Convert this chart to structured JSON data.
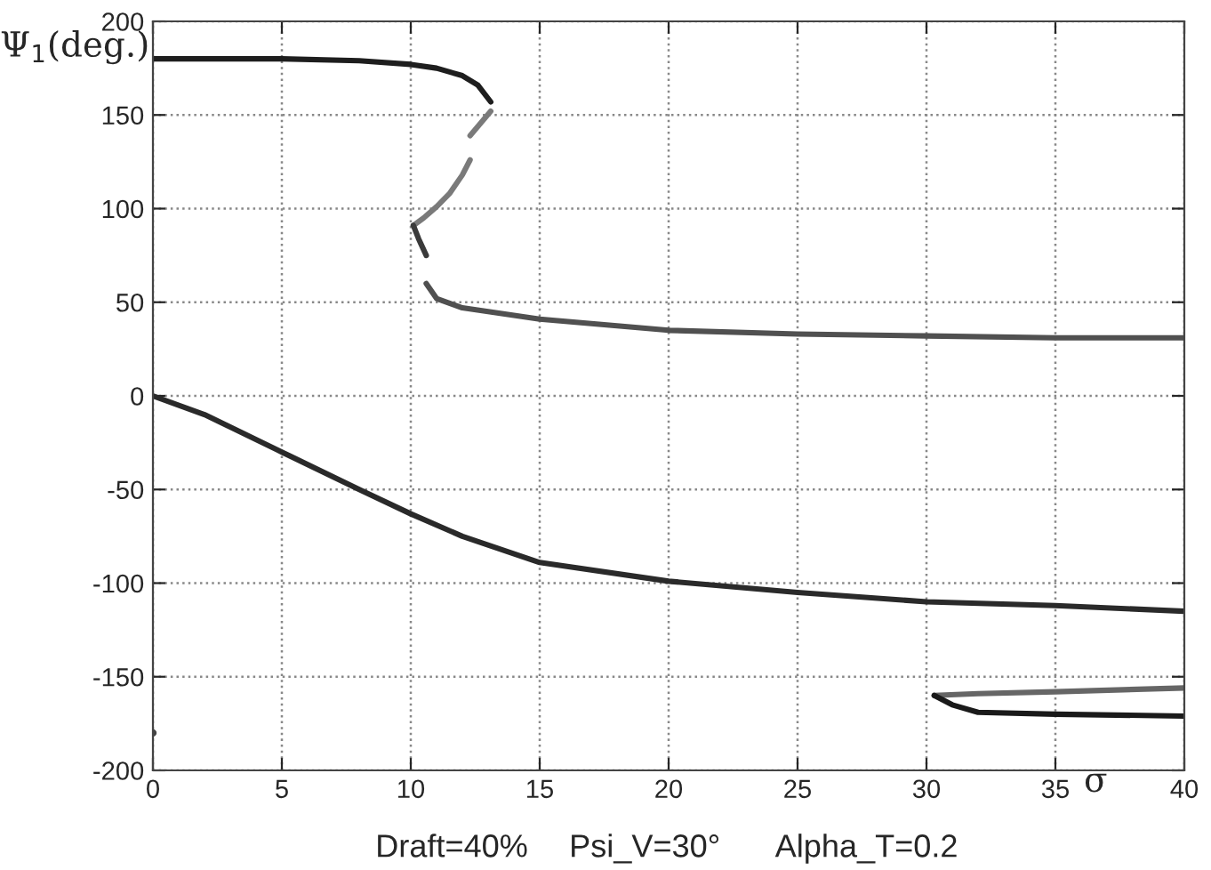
{
  "chart_data": {
    "type": "line",
    "xlabel": "σ",
    "ylabel": "Ψ$_{1}$(deg.)",
    "xlim": [
      0,
      40
    ],
    "xticks": [
      0,
      5,
      10,
      15,
      20,
      25,
      30,
      35,
      40
    ],
    "ylim": [
      -200,
      200
    ],
    "yticks": [
      -200,
      -150,
      -100,
      -50,
      0,
      50,
      100,
      150,
      200
    ],
    "grid": true,
    "marker": "none",
    "line_style": "solid",
    "series": [
      {
        "color": "#1e1e1e",
        "x": [
          0,
          5,
          8,
          10,
          11,
          12,
          12.6,
          13.1
        ],
        "values": [
          180,
          180,
          179,
          177,
          175,
          171,
          166,
          157
        ]
      },
      {
        "color": "#7a7a7a",
        "x": [
          13.1,
          12.3
        ],
        "values": [
          152,
          139
        ]
      },
      {
        "color": "#7a7a7a",
        "x": [
          12.3,
          12,
          11.5,
          11,
          10.5,
          10.1
        ],
        "values": [
          126,
          118,
          108,
          101,
          95,
          91
        ]
      },
      {
        "color": "#3a3a3a",
        "x": [
          10.1,
          10.3,
          10.6
        ],
        "values": [
          91,
          84,
          75
        ]
      },
      {
        "color": "#505050",
        "x": [
          10.6,
          11,
          12,
          13,
          15,
          20,
          25,
          30,
          35,
          40
        ],
        "values": [
          60,
          52,
          47,
          45,
          41,
          35,
          33,
          32,
          31,
          31
        ]
      },
      {
        "color": "#2a2a2a",
        "x": [
          0,
          2,
          5,
          8,
          10,
          12,
          15,
          20,
          25,
          30,
          35,
          40
        ],
        "values": [
          0,
          -10,
          -30,
          -50,
          -63,
          -75,
          -89,
          -99,
          -105,
          -110,
          -112,
          -115
        ]
      },
      {
        "color": "#666666",
        "x": [
          30.3,
          32,
          35,
          40
        ],
        "values": [
          -160,
          -159,
          -158,
          -156
        ]
      },
      {
        "color": "#1a1a1a",
        "x": [
          30.3,
          31,
          32,
          35,
          40
        ],
        "values": [
          -160,
          -165,
          -169,
          -170,
          -171
        ]
      },
      {
        "type": "scatter",
        "color": "#444444",
        "x": [
          0
        ],
        "values": [
          -180
        ]
      }
    ],
    "annotations": [
      "Draft=40%",
      "Psi_V=30°",
      "Alpha_T=0.2"
    ]
  }
}
